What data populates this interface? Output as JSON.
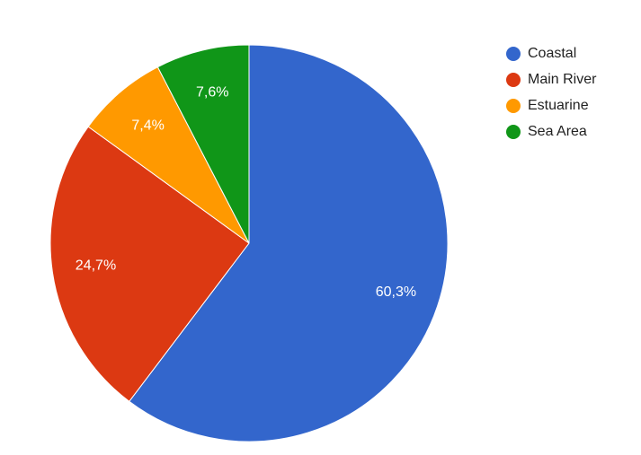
{
  "chart_data": {
    "type": "pie",
    "categories": [
      "Coastal",
      "Main River",
      "Estuarine",
      "Sea Area"
    ],
    "values": [
      60.3,
      24.7,
      7.4,
      7.6
    ],
    "value_labels": [
      "60,3%",
      "24,7%",
      "7,4%",
      "7,6%"
    ],
    "colors": [
      "#3366cc",
      "#dc3912",
      "#ff9900",
      "#109618"
    ],
    "legend": "right"
  }
}
